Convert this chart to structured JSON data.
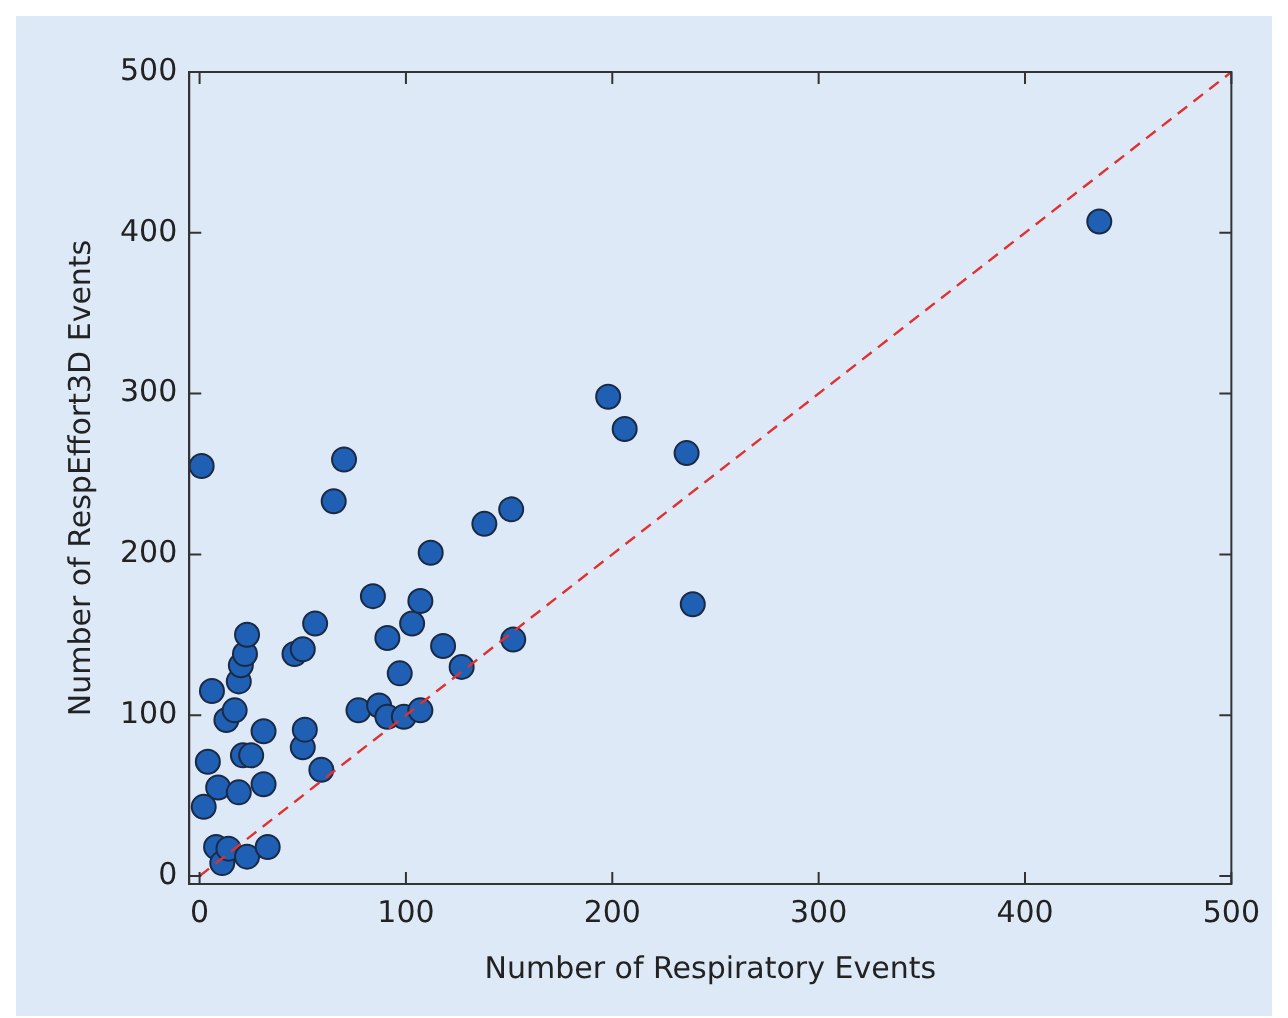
{
  "chart_data": {
    "type": "scatter",
    "xlabel": "Number of Respiratory Events",
    "ylabel": "Number of RespEffort3D Events",
    "xlim": [
      -5,
      500
    ],
    "ylim": [
      -5,
      500
    ],
    "xticks": [
      0,
      100,
      200,
      300,
      400,
      500
    ],
    "yticks": [
      0,
      100,
      200,
      300,
      400,
      500
    ],
    "grid": false,
    "legend": false,
    "marker": "circle",
    "series": [
      {
        "color": "#1f5fb4",
        "x": [
          1,
          6,
          4,
          2,
          8,
          11,
          14,
          9,
          13,
          17,
          19,
          20,
          22,
          23,
          21,
          25,
          19,
          23,
          31,
          31,
          33,
          46,
          50,
          56,
          50,
          51,
          59,
          65,
          70,
          77,
          84,
          87,
          91,
          91,
          97,
          99,
          103,
          107,
          107,
          112,
          118,
          127,
          138,
          151,
          152,
          198,
          206,
          236,
          239,
          436
        ],
        "values": [
          255,
          115,
          71,
          43,
          18,
          8,
          17,
          55,
          97,
          103,
          121,
          131,
          138,
          150,
          75,
          75,
          52,
          12,
          90,
          57,
          18,
          138,
          141,
          157,
          80,
          91,
          66,
          233,
          259,
          103,
          174,
          106,
          148,
          99,
          126,
          99,
          157,
          171,
          103,
          201,
          143,
          130,
          219,
          228,
          147,
          298,
          278,
          263,
          169,
          407
        ]
      },
      {
        "type": "line",
        "color": "#e03030",
        "line_style": "dashed",
        "marker": "none",
        "x": [
          0,
          500
        ],
        "values": [
          0,
          500
        ]
      }
    ]
  }
}
